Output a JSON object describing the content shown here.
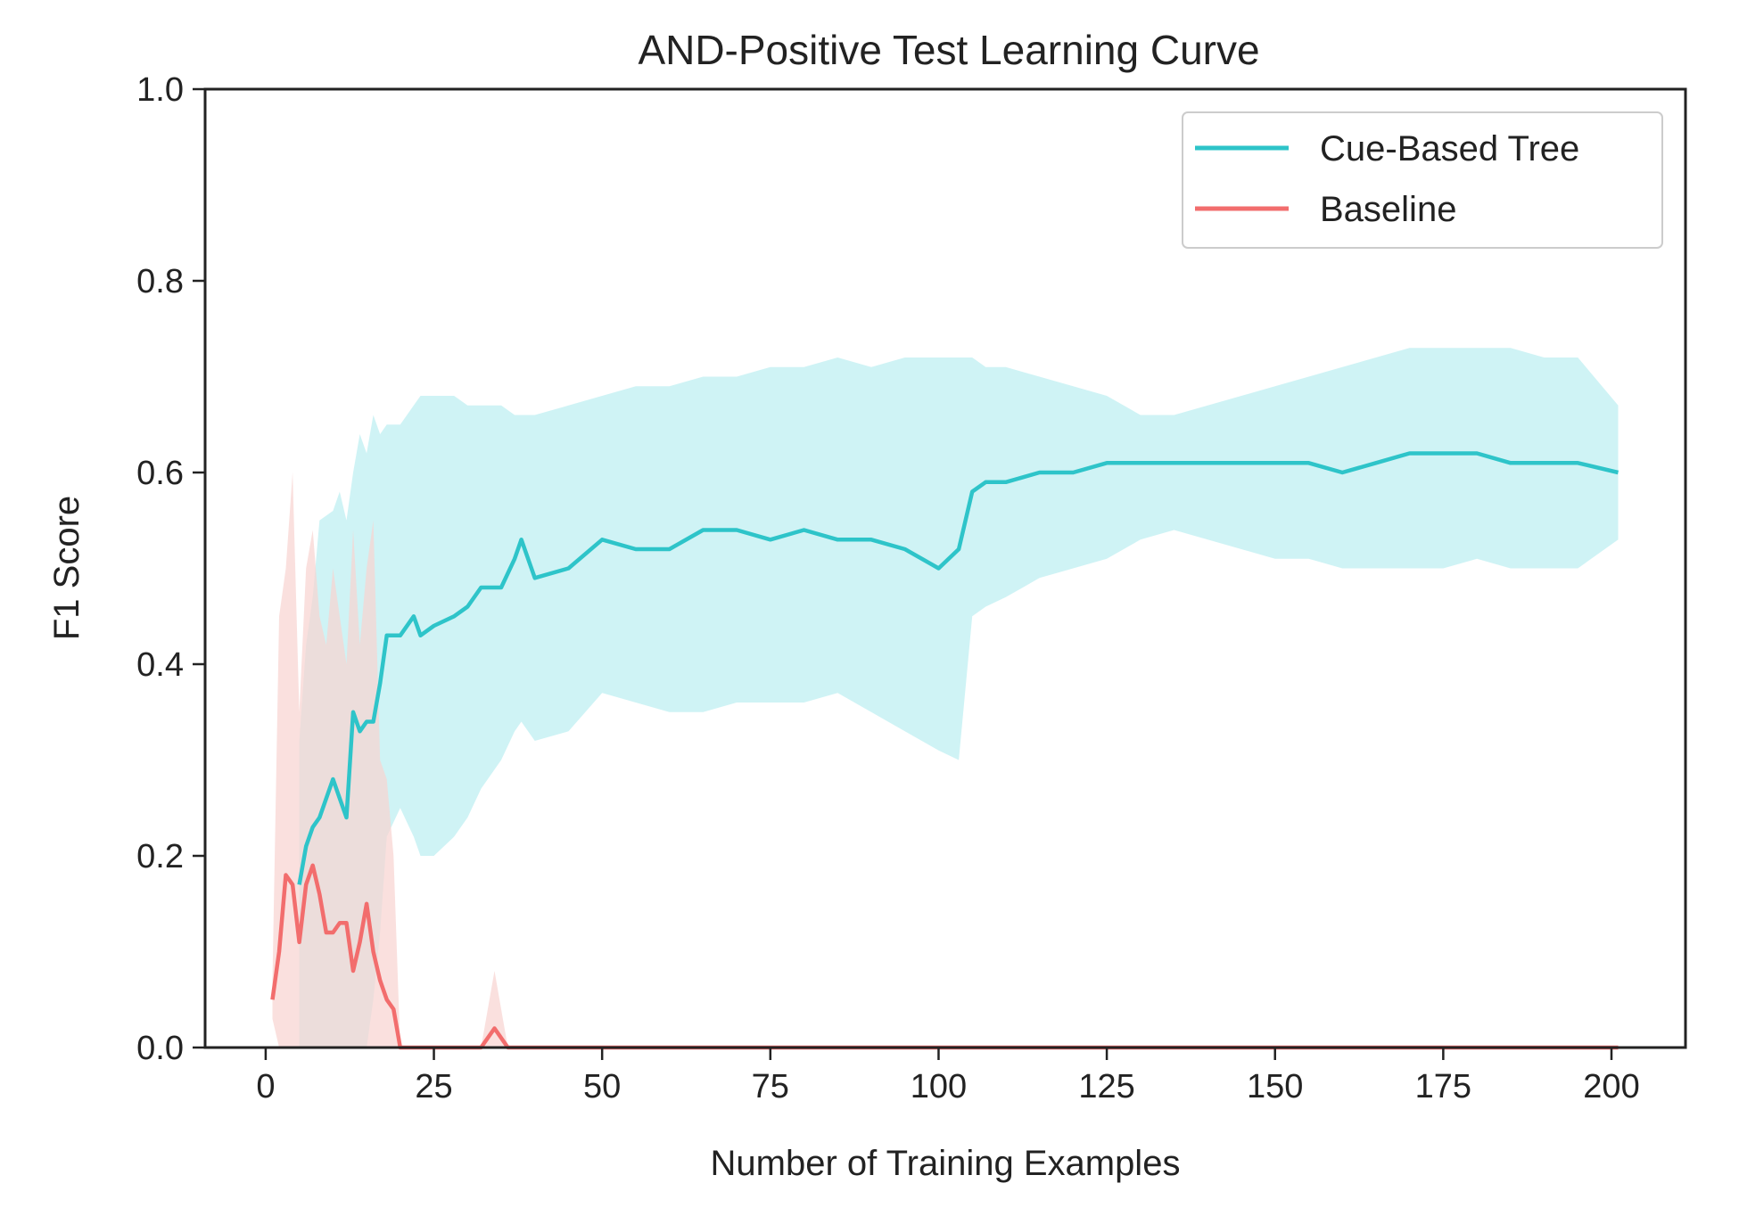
{
  "chart_data": {
    "type": "line",
    "title": "AND-Positive Test Learning Curve",
    "xlabel": "Number of Training Examples",
    "ylabel": "F1 Score",
    "xlim": [
      -9,
      211
    ],
    "ylim": [
      0.0,
      1.0
    ],
    "xticks": [
      0,
      25,
      50,
      75,
      100,
      125,
      150,
      175,
      200
    ],
    "yticks": [
      0.0,
      0.2,
      0.4,
      0.6,
      0.8,
      1.0
    ],
    "xtick_labels": [
      "0",
      "25",
      "50",
      "75",
      "100",
      "125",
      "150",
      "175",
      "200"
    ],
    "ytick_labels": [
      "0.0",
      "0.2",
      "0.4",
      "0.6",
      "0.8",
      "1.0"
    ],
    "grid": false,
    "legend_position": "top-right",
    "series": [
      {
        "name": "Cue-Based Tree",
        "color": "#2ec4c9",
        "band_color": "#bfeff1",
        "x": [
          5,
          6,
          7,
          8,
          10,
          11,
          12,
          13,
          14,
          15,
          16,
          17,
          18,
          20,
          22,
          23,
          25,
          28,
          30,
          32,
          35,
          37,
          38,
          40,
          45,
          50,
          55,
          60,
          65,
          70,
          75,
          80,
          85,
          90,
          95,
          100,
          103,
          105,
          107,
          110,
          115,
          120,
          125,
          130,
          135,
          140,
          145,
          150,
          155,
          160,
          165,
          170,
          175,
          180,
          185,
          190,
          195,
          201
        ],
        "y": [
          0.17,
          0.21,
          0.23,
          0.24,
          0.28,
          0.26,
          0.24,
          0.35,
          0.33,
          0.34,
          0.34,
          0.38,
          0.43,
          0.43,
          0.45,
          0.43,
          0.44,
          0.45,
          0.46,
          0.48,
          0.48,
          0.51,
          0.53,
          0.49,
          0.5,
          0.53,
          0.52,
          0.52,
          0.54,
          0.54,
          0.53,
          0.54,
          0.53,
          0.53,
          0.52,
          0.5,
          0.52,
          0.58,
          0.59,
          0.59,
          0.6,
          0.6,
          0.61,
          0.61,
          0.61,
          0.61,
          0.61,
          0.61,
          0.61,
          0.6,
          0.61,
          0.62,
          0.62,
          0.62,
          0.61,
          0.61,
          0.61,
          0.6
        ],
        "lower": [
          0.0,
          0.0,
          0.0,
          0.0,
          0.0,
          0.0,
          0.0,
          0.0,
          0.0,
          0.0,
          0.05,
          0.12,
          0.22,
          0.25,
          0.22,
          0.2,
          0.2,
          0.22,
          0.24,
          0.27,
          0.3,
          0.33,
          0.34,
          0.32,
          0.33,
          0.37,
          0.36,
          0.35,
          0.35,
          0.36,
          0.36,
          0.36,
          0.37,
          0.35,
          0.33,
          0.31,
          0.3,
          0.45,
          0.46,
          0.47,
          0.49,
          0.5,
          0.51,
          0.53,
          0.54,
          0.53,
          0.52,
          0.51,
          0.51,
          0.5,
          0.5,
          0.5,
          0.5,
          0.51,
          0.5,
          0.5,
          0.5,
          0.53
        ],
        "upper": [
          0.32,
          0.42,
          0.47,
          0.55,
          0.56,
          0.58,
          0.55,
          0.6,
          0.64,
          0.62,
          0.66,
          0.64,
          0.65,
          0.65,
          0.67,
          0.68,
          0.68,
          0.68,
          0.67,
          0.67,
          0.67,
          0.66,
          0.66,
          0.66,
          0.67,
          0.68,
          0.69,
          0.69,
          0.7,
          0.7,
          0.71,
          0.71,
          0.72,
          0.71,
          0.72,
          0.72,
          0.72,
          0.72,
          0.71,
          0.71,
          0.7,
          0.69,
          0.68,
          0.66,
          0.66,
          0.67,
          0.68,
          0.69,
          0.7,
          0.71,
          0.72,
          0.73,
          0.73,
          0.73,
          0.73,
          0.72,
          0.72,
          0.67
        ]
      },
      {
        "name": "Baseline",
        "color": "#f26d6d",
        "band_color": "#f8d3d0",
        "x": [
          1,
          2,
          3,
          4,
          5,
          6,
          7,
          8,
          9,
          10,
          11,
          12,
          13,
          14,
          15,
          16,
          17,
          18,
          19,
          20,
          30,
          32,
          34,
          36,
          40,
          60,
          80,
          100,
          120,
          140,
          160,
          180,
          201
        ],
        "y": [
          0.05,
          0.1,
          0.18,
          0.17,
          0.11,
          0.17,
          0.19,
          0.16,
          0.12,
          0.12,
          0.13,
          0.13,
          0.08,
          0.11,
          0.15,
          0.1,
          0.07,
          0.05,
          0.04,
          0.0,
          0.0,
          0.0,
          0.02,
          0.0,
          0.0,
          0.0,
          0.0,
          0.0,
          0.0,
          0.0,
          0.0,
          0.0,
          0.0
        ],
        "lower": [
          0.03,
          0.0,
          0.0,
          0.0,
          0.0,
          0.0,
          0.0,
          0.0,
          0.0,
          0.0,
          0.0,
          0.0,
          0.0,
          0.0,
          0.0,
          0.0,
          0.0,
          0.0,
          0.0,
          0.0,
          0.0,
          0.0,
          0.0,
          0.0,
          0.0,
          0.0,
          0.0,
          0.0,
          0.0,
          0.0,
          0.0,
          0.0,
          0.0
        ],
        "upper": [
          0.07,
          0.45,
          0.5,
          0.6,
          0.35,
          0.5,
          0.54,
          0.45,
          0.42,
          0.5,
          0.45,
          0.4,
          0.54,
          0.42,
          0.5,
          0.55,
          0.3,
          0.28,
          0.2,
          0.0,
          0.0,
          0.0,
          0.08,
          0.0,
          0.0,
          0.0,
          0.0,
          0.0,
          0.0,
          0.0,
          0.0,
          0.0,
          0.0
        ]
      }
    ]
  }
}
